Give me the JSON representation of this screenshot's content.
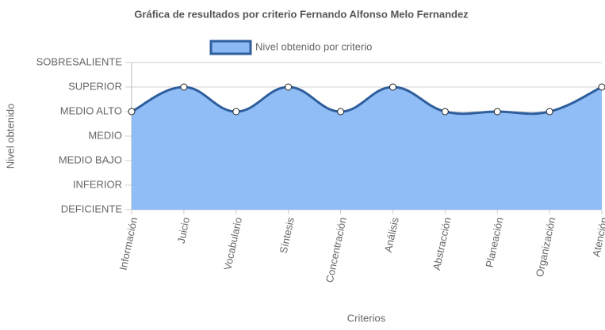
{
  "chart_data": {
    "type": "line",
    "title": "Gráfica de resultados por criterio Fernando Alfonso Melo Fernandez",
    "x_label": "Criterios",
    "y_label": "Nivel obtenido",
    "categories": [
      "Información",
      "Juicio",
      "Vocabulario",
      "Síntesis",
      "Concentración",
      "Análisis",
      "Abstracción",
      "Planeación",
      "Organización",
      "Atención"
    ],
    "series": [
      {
        "name": "Nivel obtenido por criterio",
        "color": "#2e5e9c",
        "fill_color": "#8ab9f4",
        "values": [
          4,
          5,
          4,
          5,
          4,
          5,
          4,
          4,
          4,
          5
        ]
      }
    ],
    "ylim": [
      0,
      6
    ],
    "yticks": [
      {
        "value": 0,
        "label": "DEFICIENTE"
      },
      {
        "value": 1,
        "label": "INFERIOR"
      },
      {
        "value": 2,
        "label": "MEDIO BAJO"
      },
      {
        "value": 3,
        "label": "MEDIO"
      },
      {
        "value": 4,
        "label": "MEDIO ALTO"
      },
      {
        "value": 5,
        "label": "SUPERIOR"
      },
      {
        "value": 6,
        "label": "SOBRESALIENTE"
      }
    ],
    "grid": true,
    "fill": true,
    "legend": "top"
  }
}
